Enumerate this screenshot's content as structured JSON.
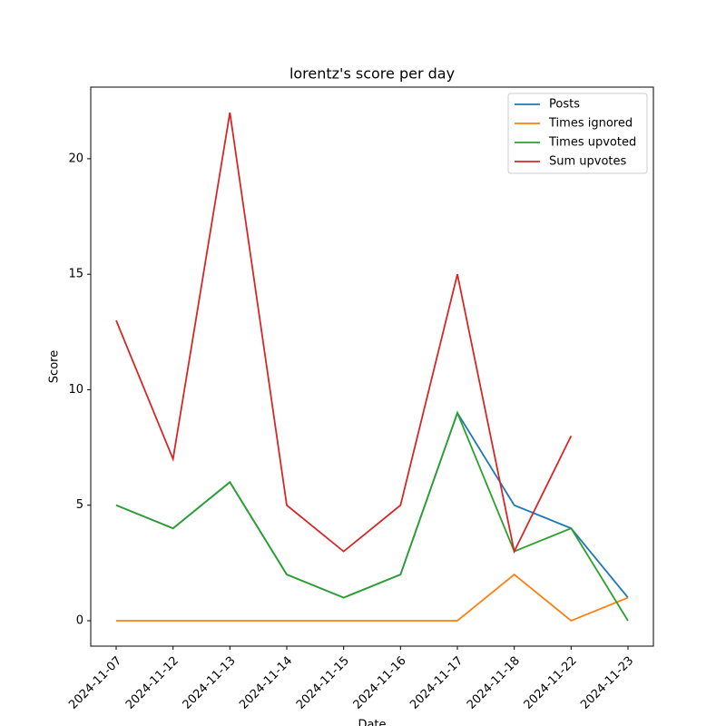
{
  "chart_data": {
    "type": "line",
    "title": "lorentz's score per day",
    "x_label": "Date",
    "y_label": "Score",
    "categories": [
      "2024-11-07",
      "2024-11-12",
      "2024-11-13",
      "2024-11-14",
      "2024-11-15",
      "2024-11-16",
      "2024-11-17",
      "2024-11-18",
      "2024-11-22",
      "2024-11-23"
    ],
    "series": [
      {
        "name": "Posts",
        "color": "#1f77b4",
        "values": [
          5,
          4,
          6,
          2,
          1,
          2,
          9,
          5,
          4,
          1
        ]
      },
      {
        "name": "Times ignored",
        "color": "#ff7f0e",
        "values": [
          0,
          0,
          0,
          0,
          0,
          0,
          0,
          2,
          0,
          1
        ]
      },
      {
        "name": "Times upvoted",
        "color": "#2ca02c",
        "values": [
          5,
          4,
          6,
          2,
          1,
          2,
          9,
          3,
          4,
          0
        ]
      },
      {
        "name": "Sum upvotes",
        "color": "#d62728",
        "values": [
          13,
          7,
          22,
          5,
          3,
          5,
          15,
          3,
          8,
          null
        ]
      }
    ],
    "ylim": [
      -1.1,
      23.1
    ],
    "yticks": [
      0,
      5,
      10,
      15,
      20
    ],
    "legend": "upper right"
  }
}
